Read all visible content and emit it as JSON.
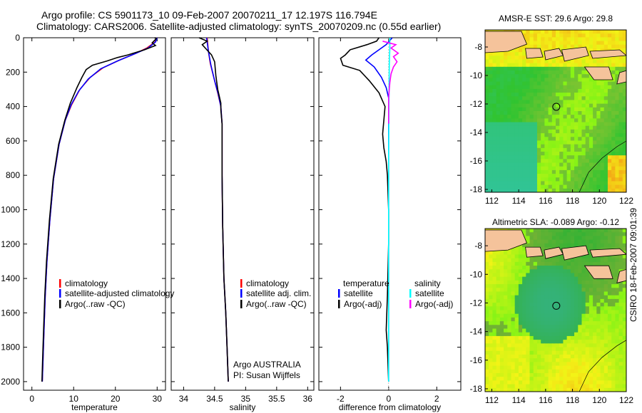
{
  "header": {
    "line1": "Argo profile: CS 5901173_10 09-Feb-2007 20070211_17 12.197S 116.794E",
    "line2": "Climatology: CARS2006. Satellite-adjusted climatology: synTS_20070209.nc (0.55d earlier)"
  },
  "footer_vertical": "CSIRO 18-Feb-2007 09:01:39",
  "colors": {
    "climatology": "#ff0000",
    "satellite": "#0000ff",
    "argo": "#000000",
    "salinity_satellite": "#00ffff",
    "salinity_argo": "#ff00ff",
    "land": "#f5c39b"
  },
  "chart_data": [
    {
      "type": "line",
      "ylabel": "",
      "xlabel": "temperature",
      "xlim": [
        -2,
        32
      ],
      "ylim": [
        2050,
        0
      ],
      "y_inverted": true,
      "xticks": [
        0,
        10,
        20,
        30
      ],
      "yticks": [
        0,
        200,
        400,
        600,
        800,
        1000,
        1200,
        1400,
        1600,
        1800,
        2000
      ],
      "legend": {
        "placement": "lower-right",
        "entries": [
          "climatology",
          "satellite-adjusted climatology",
          "Argo(..raw -QC)"
        ]
      },
      "series": [
        {
          "name": "climatology",
          "points": [
            [
              30,
              0
            ],
            [
              29.5,
              25
            ],
            [
              27.5,
              60
            ],
            [
              25,
              90
            ],
            [
              21,
              130
            ],
            [
              17,
              175
            ],
            [
              14,
              230
            ],
            [
              11.5,
              300
            ],
            [
              9.5,
              390
            ],
            [
              8,
              480
            ],
            [
              6.5,
              620
            ],
            [
              5.2,
              820
            ],
            [
              4.3,
              1060
            ],
            [
              3.6,
              1300
            ],
            [
              3.2,
              1500
            ],
            [
              2.9,
              1700
            ],
            [
              2.7,
              1850
            ],
            [
              2.5,
              2000
            ]
          ]
        },
        {
          "name": "satellite-adjusted climatology",
          "points": [
            [
              30,
              0
            ],
            [
              29.6,
              25
            ],
            [
              27.8,
              60
            ],
            [
              24.5,
              95
            ],
            [
              20.5,
              135
            ],
            [
              16.5,
              180
            ],
            [
              13.5,
              240
            ],
            [
              11.2,
              310
            ],
            [
              9.4,
              390
            ],
            [
              8,
              480
            ],
            [
              6.5,
              620
            ],
            [
              5.2,
              820
            ],
            [
              4.3,
              1060
            ],
            [
              3.6,
              1300
            ],
            [
              3.2,
              1500
            ],
            [
              2.9,
              1700
            ],
            [
              2.7,
              1850
            ],
            [
              2.5,
              2000
            ]
          ]
        },
        {
          "name": "Argo(..raw -QC)",
          "points": [
            [
              29.4,
              0
            ],
            [
              29.8,
              5
            ],
            [
              28.8,
              30
            ],
            [
              29.6,
              45
            ],
            [
              27,
              70
            ],
            [
              23,
              100
            ],
            [
              20.5,
              115
            ],
            [
              18,
              135
            ],
            [
              14.5,
              160
            ],
            [
              13,
              185
            ],
            [
              12,
              230
            ],
            [
              10.8,
              290
            ],
            [
              9.2,
              380
            ],
            [
              7.9,
              480
            ],
            [
              6.4,
              620
            ],
            [
              5.1,
              820
            ],
            [
              4.2,
              1060
            ],
            [
              3.5,
              1300
            ],
            [
              3.1,
              1500
            ],
            [
              2.8,
              1700
            ],
            [
              2.6,
              1850
            ],
            [
              2.4,
              2000
            ]
          ]
        }
      ]
    },
    {
      "type": "line",
      "xlabel": "salinity",
      "xlim": [
        33.8,
        36.1
      ],
      "ylim": [
        2050,
        0
      ],
      "y_inverted": true,
      "xticks": [
        34,
        34.5,
        35,
        35.5,
        36
      ],
      "xtick_labels": [
        "34",
        "34.5",
        "35",
        "35.5",
        "36"
      ],
      "legend": {
        "placement": "lower-right",
        "entries": [
          "climatology",
          "satellite adj. clim.",
          "Argo(..raw -QC)"
        ]
      },
      "annotations": [
        "Argo AUSTRALIA",
        "PI: Susan Wijffels"
      ],
      "series": [
        {
          "name": "climatology",
          "points": [
            [
              34.38,
              0
            ],
            [
              34.4,
              80
            ],
            [
              34.43,
              150
            ],
            [
              34.5,
              250
            ],
            [
              34.55,
              320
            ],
            [
              34.6,
              400
            ],
            [
              34.62,
              500
            ],
            [
              34.62,
              800
            ],
            [
              34.63,
              1100
            ],
            [
              34.65,
              1400
            ],
            [
              34.68,
              1600
            ],
            [
              34.7,
              1800
            ],
            [
              34.72,
              2000
            ]
          ]
        },
        {
          "name": "satellite adj. clim.",
          "points": [
            [
              34.37,
              0
            ],
            [
              34.4,
              80
            ],
            [
              34.44,
              160
            ],
            [
              34.5,
              250
            ],
            [
              34.56,
              330
            ],
            [
              34.6,
              400
            ],
            [
              34.62,
              500
            ],
            [
              34.62,
              800
            ],
            [
              34.63,
              1100
            ],
            [
              34.65,
              1400
            ],
            [
              34.68,
              1600
            ],
            [
              34.7,
              1800
            ],
            [
              34.72,
              2000
            ]
          ]
        },
        {
          "name": "Argo(..raw -QC)",
          "points": [
            [
              34.25,
              0
            ],
            [
              34.38,
              20
            ],
            [
              34.3,
              40
            ],
            [
              34.35,
              60
            ],
            [
              34.45,
              100
            ],
            [
              34.5,
              140
            ],
            [
              34.52,
              220
            ],
            [
              34.55,
              300
            ],
            [
              34.6,
              380
            ],
            [
              34.6,
              420
            ],
            [
              34.62,
              500
            ],
            [
              34.62,
              800
            ],
            [
              34.63,
              1100
            ],
            [
              34.65,
              1400
            ],
            [
              34.68,
              1600
            ],
            [
              34.7,
              1800
            ],
            [
              34.72,
              2000
            ]
          ]
        }
      ]
    },
    {
      "type": "line",
      "xlabel": "difference from climatology",
      "xlim": [
        -2.9,
        3.0
      ],
      "ylim": [
        2050,
        0
      ],
      "y_inverted": true,
      "xticks": [
        -2,
        0,
        2
      ],
      "legend": {
        "placement": "lower-center",
        "entries": [
          "temperature",
          "satellite",
          "Argo(-adj)",
          "salinity",
          "satellite",
          "Argo(-adj)"
        ]
      },
      "series": [
        {
          "name": "temperature satellite",
          "points": [
            [
              0.15,
              0
            ],
            [
              -0.1,
              40
            ],
            [
              -0.4,
              70
            ],
            [
              -0.7,
              100
            ],
            [
              -0.95,
              130
            ],
            [
              -0.6,
              170
            ],
            [
              -0.3,
              230
            ],
            [
              -0.1,
              290
            ],
            [
              0,
              350
            ],
            [
              0,
              450
            ],
            [
              0,
              800
            ],
            [
              0,
              1200
            ],
            [
              0,
              1600
            ],
            [
              0,
              2000
            ]
          ]
        },
        {
          "name": "temperature Argo(-adj)",
          "points": [
            [
              -0.4,
              0
            ],
            [
              -0.5,
              20
            ],
            [
              -0.9,
              40
            ],
            [
              -1.6,
              70
            ],
            [
              -1.8,
              100
            ],
            [
              -2.0,
              120
            ],
            [
              -1.9,
              160
            ],
            [
              -1.2,
              190
            ],
            [
              -0.8,
              250
            ],
            [
              -0.4,
              320
            ],
            [
              -0.15,
              400
            ],
            [
              -0.2,
              480
            ],
            [
              -0.25,
              560
            ],
            [
              -0.2,
              640
            ],
            [
              -0.1,
              720
            ],
            [
              -0.05,
              800
            ],
            [
              0,
              1000
            ],
            [
              0,
              1200
            ],
            [
              -0.05,
              1500
            ],
            [
              -0.1,
              1700
            ],
            [
              -0.05,
              1800
            ],
            [
              0,
              2000
            ]
          ]
        },
        {
          "name": "salinity satellite",
          "points": [
            [
              0.05,
              0
            ],
            [
              0.05,
              60
            ],
            [
              0.03,
              150
            ],
            [
              0.02,
              250
            ],
            [
              0.01,
              400
            ],
            [
              0,
              700
            ],
            [
              0,
              1000
            ],
            [
              0,
              1400
            ],
            [
              0,
              2000
            ]
          ]
        },
        {
          "name": "salinity Argo(-adj)",
          "points": [
            [
              -0.25,
              20
            ],
            [
              0.3,
              40
            ],
            [
              0.1,
              60
            ],
            [
              0.4,
              90
            ],
            [
              0.2,
              110
            ],
            [
              0.35,
              140
            ],
            [
              0.2,
              170
            ],
            [
              0.1,
              210
            ],
            [
              0.05,
              260
            ],
            [
              0,
              350
            ],
            [
              0,
              500
            ]
          ]
        }
      ]
    },
    {
      "type": "heatmap",
      "title": "AMSR-E SST: 29.6 Argo: 29.8",
      "xlim": [
        111.5,
        122
      ],
      "ylim": [
        -18.2,
        -6.8
      ],
      "xticks": [
        112,
        114,
        116,
        118,
        120,
        122
      ],
      "yticks": [
        -8,
        -10,
        -12,
        -14,
        -16,
        -18
      ],
      "marker": {
        "lon": 116.794,
        "lat": -12.197
      }
    },
    {
      "type": "heatmap",
      "title": "Altimetric SLA: -0.089 Argo: -0.12",
      "xlim": [
        111.5,
        122
      ],
      "ylim": [
        -18.2,
        -6.8
      ],
      "xticks": [
        112,
        114,
        116,
        118,
        120,
        122
      ],
      "yticks": [
        -8,
        -10,
        -12,
        -14,
        -16,
        -18
      ],
      "marker": {
        "lon": 116.794,
        "lat": -12.197
      }
    }
  ]
}
